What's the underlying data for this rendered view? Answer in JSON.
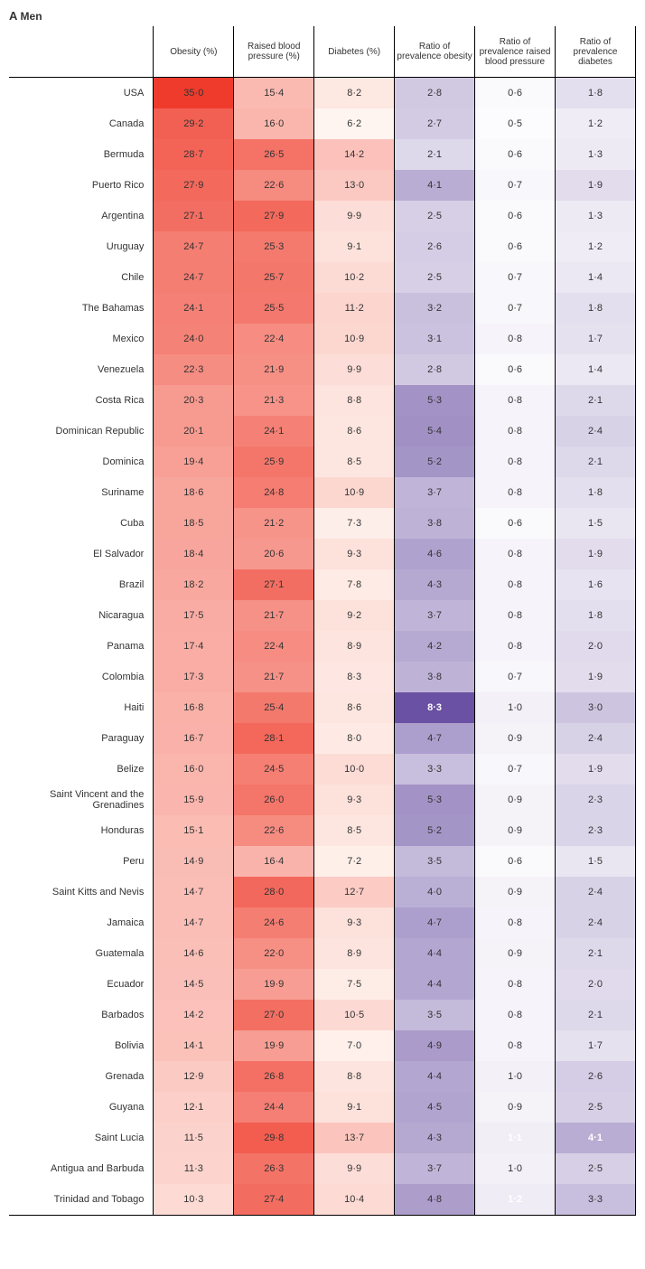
{
  "panel": {
    "letter": "A",
    "label": "Men"
  },
  "columns": [
    "Obesity (%)",
    "Raised blood pressure (%)",
    "Diabetes (%)",
    "Ratio of prevalence obesity",
    "Ratio of prevalence raised blood pressure",
    "Ratio of prevalence diabetes"
  ],
  "palettes": {
    "red": {
      "min": 6.2,
      "max": 35.0,
      "lo": "#fff5f0",
      "hi": "#ef3b2c"
    },
    "purple": {
      "min": 0.5,
      "max": 8.3,
      "lo": "#fcfbfd",
      "hi": "#6a51a3"
    }
  },
  "column_palette": [
    "red",
    "red",
    "red",
    "purple",
    "purple",
    "purple"
  ],
  "bold_white_threshold": {
    "red": 999,
    "purple": 0.85
  },
  "special_bold": [
    [
      "Haiti",
      3
    ],
    [
      "Saint Lucia",
      4
    ],
    [
      "Saint Lucia",
      5
    ],
    [
      "Trinidad and Tobago",
      4
    ]
  ],
  "rows": [
    {
      "c": "USA",
      "v": [
        35.0,
        15.4,
        8.2,
        2.8,
        0.6,
        1.8
      ]
    },
    {
      "c": "Canada",
      "v": [
        29.2,
        16.0,
        6.2,
        2.7,
        0.5,
        1.2
      ]
    },
    {
      "c": "Bermuda",
      "v": [
        28.7,
        26.5,
        14.2,
        2.1,
        0.6,
        1.3
      ]
    },
    {
      "c": "Puerto Rico",
      "v": [
        27.9,
        22.6,
        13.0,
        4.1,
        0.7,
        1.9
      ]
    },
    {
      "c": "Argentina",
      "v": [
        27.1,
        27.9,
        9.9,
        2.5,
        0.6,
        1.3
      ]
    },
    {
      "c": "Uruguay",
      "v": [
        24.7,
        25.3,
        9.1,
        2.6,
        0.6,
        1.2
      ]
    },
    {
      "c": "Chile",
      "v": [
        24.7,
        25.7,
        10.2,
        2.5,
        0.7,
        1.4
      ]
    },
    {
      "c": "The Bahamas",
      "v": [
        24.1,
        25.5,
        11.2,
        3.2,
        0.7,
        1.8
      ]
    },
    {
      "c": "Mexico",
      "v": [
        24.0,
        22.4,
        10.9,
        3.1,
        0.8,
        1.7
      ]
    },
    {
      "c": "Venezuela",
      "v": [
        22.3,
        21.9,
        9.9,
        2.8,
        0.6,
        1.4
      ]
    },
    {
      "c": "Costa Rica",
      "v": [
        20.3,
        21.3,
        8.8,
        5.3,
        0.8,
        2.1
      ]
    },
    {
      "c": "Dominican Republic",
      "v": [
        20.1,
        24.1,
        8.6,
        5.4,
        0.8,
        2.4
      ]
    },
    {
      "c": "Dominica",
      "v": [
        19.4,
        25.9,
        8.5,
        5.2,
        0.8,
        2.1
      ]
    },
    {
      "c": "Suriname",
      "v": [
        18.6,
        24.8,
        10.9,
        3.7,
        0.8,
        1.8
      ]
    },
    {
      "c": "Cuba",
      "v": [
        18.5,
        21.2,
        7.3,
        3.8,
        0.6,
        1.5
      ]
    },
    {
      "c": "El Salvador",
      "v": [
        18.4,
        20.6,
        9.3,
        4.6,
        0.8,
        1.9
      ]
    },
    {
      "c": "Brazil",
      "v": [
        18.2,
        27.1,
        7.8,
        4.3,
        0.8,
        1.6
      ]
    },
    {
      "c": "Nicaragua",
      "v": [
        17.5,
        21.7,
        9.2,
        3.7,
        0.8,
        1.8
      ]
    },
    {
      "c": "Panama",
      "v": [
        17.4,
        22.4,
        8.9,
        4.2,
        0.8,
        2.0
      ]
    },
    {
      "c": "Colombia",
      "v": [
        17.3,
        21.7,
        8.3,
        3.8,
        0.7,
        1.9
      ]
    },
    {
      "c": "Haiti",
      "v": [
        16.8,
        25.4,
        8.6,
        8.3,
        1.0,
        3.0
      ]
    },
    {
      "c": "Paraguay",
      "v": [
        16.7,
        28.1,
        8.0,
        4.7,
        0.9,
        2.4
      ]
    },
    {
      "c": "Belize",
      "v": [
        16.0,
        24.5,
        10.0,
        3.3,
        0.7,
        1.9
      ]
    },
    {
      "c": "Saint Vincent and the Grenadines",
      "v": [
        15.9,
        26.0,
        9.3,
        5.3,
        0.9,
        2.3
      ]
    },
    {
      "c": "Honduras",
      "v": [
        15.1,
        22.6,
        8.5,
        5.2,
        0.9,
        2.3
      ]
    },
    {
      "c": "Peru",
      "v": [
        14.9,
        16.4,
        7.2,
        3.5,
        0.6,
        1.5
      ]
    },
    {
      "c": "Saint Kitts and Nevis",
      "v": [
        14.7,
        28.0,
        12.7,
        4.0,
        0.9,
        2.4
      ]
    },
    {
      "c": "Jamaica",
      "v": [
        14.7,
        24.6,
        9.3,
        4.7,
        0.8,
        2.4
      ]
    },
    {
      "c": "Guatemala",
      "v": [
        14.6,
        22.0,
        8.9,
        4.4,
        0.9,
        2.1
      ]
    },
    {
      "c": "Ecuador",
      "v": [
        14.5,
        19.9,
        7.5,
        4.4,
        0.8,
        2.0
      ]
    },
    {
      "c": "Barbados",
      "v": [
        14.2,
        27.0,
        10.5,
        3.5,
        0.8,
        2.1
      ]
    },
    {
      "c": "Bolivia",
      "v": [
        14.1,
        19.9,
        7.0,
        4.9,
        0.8,
        1.7
      ]
    },
    {
      "c": "Grenada",
      "v": [
        12.9,
        26.8,
        8.8,
        4.4,
        1.0,
        2.6
      ]
    },
    {
      "c": "Guyana",
      "v": [
        12.1,
        24.4,
        9.1,
        4.5,
        0.9,
        2.5
      ]
    },
    {
      "c": "Saint Lucia",
      "v": [
        11.5,
        29.8,
        13.7,
        4.3,
        1.1,
        4.1
      ]
    },
    {
      "c": "Antigua and Barbuda",
      "v": [
        11.3,
        26.3,
        9.9,
        3.7,
        1.0,
        2.5
      ]
    },
    {
      "c": "Trinidad and Tobago",
      "v": [
        10.3,
        27.4,
        10.4,
        4.8,
        1.2,
        3.3
      ]
    }
  ]
}
